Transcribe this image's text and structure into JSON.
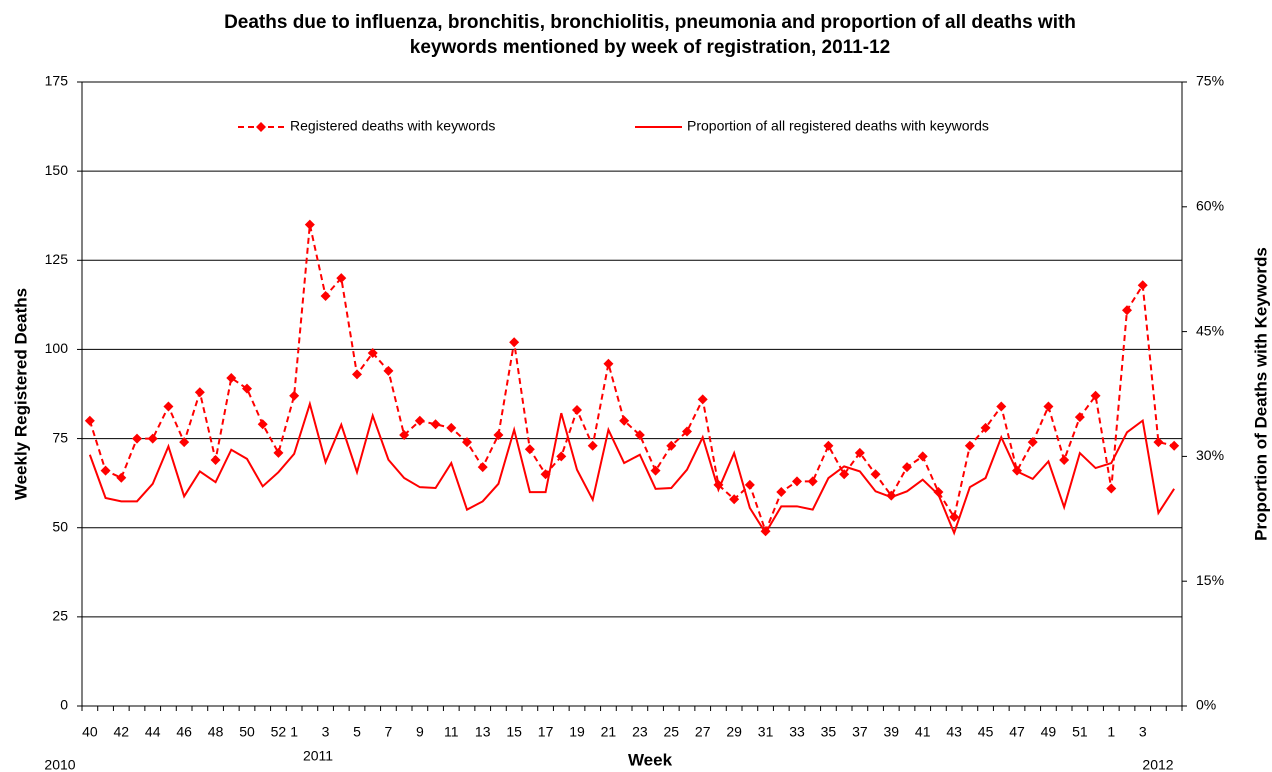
{
  "chart_data": {
    "type": "line",
    "title": "Deaths due to influenza, bronchitis, bronchiolitis, pneumonia and proportion of all deaths with keywords mentioned by week of registration, 2011-12",
    "x_label": "Week",
    "y_label": "Weekly Registered Deaths",
    "y2_label": "Proportion of Deaths with Keywords",
    "year_labels": [
      "2010",
      "2011",
      "2012"
    ],
    "categories": [
      "40",
      null,
      "42",
      null,
      "44",
      null,
      "46",
      null,
      "48",
      null,
      "50",
      null,
      "52",
      "1",
      null,
      "3",
      null,
      "5",
      null,
      "7",
      null,
      "9",
      null,
      "11",
      null,
      "13",
      null,
      "15",
      null,
      "17",
      null,
      "19",
      null,
      "21",
      null,
      "23",
      null,
      "25",
      null,
      "27",
      null,
      "29",
      null,
      "31",
      null,
      "33",
      null,
      "35",
      null,
      "37",
      null,
      "39",
      null,
      "41",
      null,
      "43",
      null,
      "45",
      null,
      "47",
      null,
      "49",
      null,
      "51",
      null,
      "1",
      null,
      "3",
      null,
      null
    ],
    "series": [
      {
        "name": "Registered deaths with keywords",
        "color": "#ff0000",
        "line_style": "dashed",
        "marker": "diamond",
        "values": [
          80,
          66,
          64,
          75,
          75,
          84,
          74,
          88,
          69,
          92,
          89,
          79,
          71,
          87,
          135,
          115,
          120,
          93,
          99,
          94,
          76,
          80,
          79,
          78,
          74,
          67,
          76,
          102,
          72,
          65,
          70,
          83,
          73,
          96,
          80,
          76,
          66,
          73,
          77,
          86,
          62,
          58,
          62,
          49,
          60,
          63,
          63,
          73,
          65,
          71,
          65,
          59,
          67,
          70,
          60,
          53,
          73,
          78,
          84,
          66,
          74,
          84,
          69,
          81,
          87,
          61,
          111,
          118,
          74,
          73
        ]
      },
      {
        "name": "Proportion of all registered deaths with keywords",
        "color": "#ff0000",
        "line_style": "solid",
        "axis": "y2",
        "values": [
          30.2,
          25,
          24.6,
          24.6,
          26.7,
          31.2,
          25.2,
          28.2,
          26.9,
          30.8,
          29.7,
          26.4,
          28.1,
          30.3,
          36.3,
          29.3,
          33.8,
          28.1,
          34.9,
          29.6,
          27.4,
          26.3,
          26.2,
          29.2,
          23.6,
          24.6,
          26.7,
          33.2,
          25.7,
          25.7,
          35.2,
          28.4,
          24.8,
          33.2,
          29.2,
          30.2,
          26.1,
          26.2,
          28.4,
          32.3,
          26,
          30.4,
          23.8,
          20.8,
          24,
          24,
          23.6,
          27.4,
          28.8,
          28.2,
          25.8,
          25.1,
          25.8,
          27.2,
          25.4,
          20.8,
          26.3,
          27.4,
          32.3,
          28.2,
          27.3,
          29.4,
          23.9,
          30.4,
          28.6,
          29.2,
          32.9,
          34.3,
          23.2,
          26.1
        ]
      }
    ],
    "ylim": [
      0,
      175
    ],
    "yticks": [
      0,
      25,
      50,
      75,
      100,
      125,
      150,
      175
    ],
    "y2lim": [
      0,
      75
    ],
    "y2ticks": [
      {
        "value": 0,
        "label": "0%"
      },
      {
        "value": 15,
        "label": "15%"
      },
      {
        "value": 30,
        "label": "30%"
      },
      {
        "value": 45,
        "label": "45%"
      },
      {
        "value": 60,
        "label": "60%"
      },
      {
        "value": 75,
        "label": "75%"
      }
    ],
    "grid": true,
    "legend": "top"
  }
}
